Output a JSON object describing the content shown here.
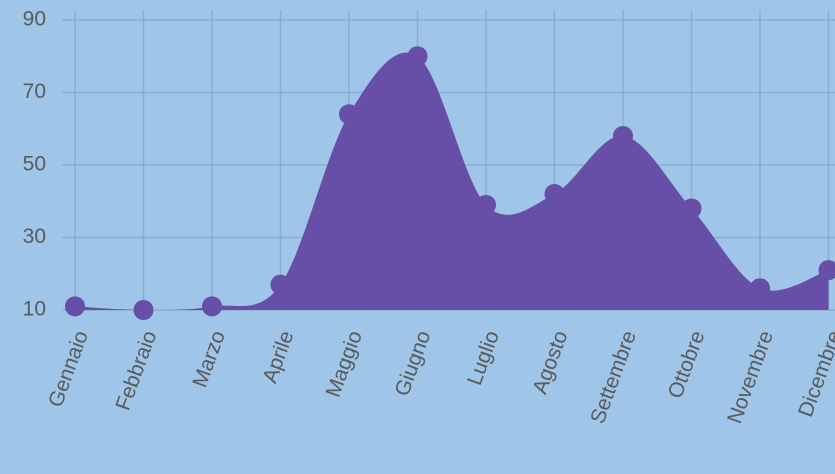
{
  "chart_data": {
    "type": "area",
    "categories": [
      "Gennaio",
      "Febbraio",
      "Marzo",
      "Aprile",
      "Maggio",
      "Giugno",
      "Luglio",
      "Agosto",
      "Settembre",
      "Ottobre",
      "Novembre",
      "Dicembre"
    ],
    "values": [
      11,
      10,
      11,
      17,
      64,
      80,
      39,
      42,
      58,
      38,
      16,
      21
    ],
    "color": "#674ea7",
    "ylim": [
      10,
      90
    ],
    "yticks": [
      10,
      30,
      50,
      70,
      90
    ],
    "grid": true,
    "smooth": true
  }
}
